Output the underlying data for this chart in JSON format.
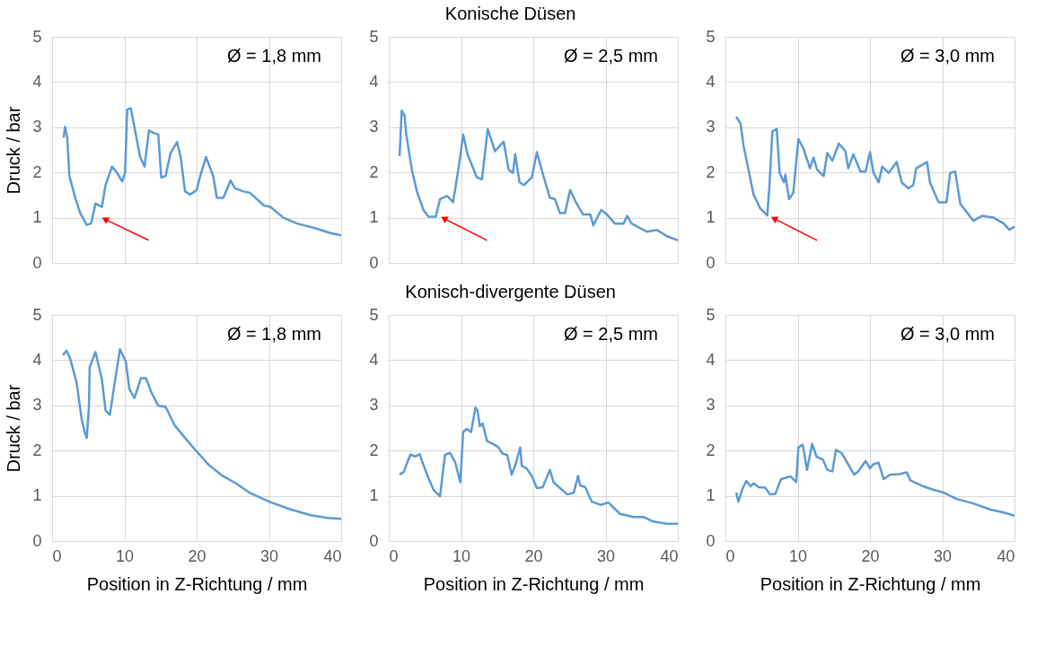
{
  "chart_data": [
    {
      "type": "line",
      "ylabel": "Druck / bar",
      "xlim": [
        0,
        40
      ],
      "xticks": [
        0,
        10,
        20,
        30,
        40
      ],
      "ylim": [
        0,
        5
      ],
      "yticks": [
        0,
        1,
        2,
        3,
        4,
        5
      ],
      "grid": true,
      "tick_labels": "y",
      "annotations": [
        "Ø = 1,8 mm"
      ],
      "series": [
        {
          "color": "#5b9bd5",
          "x": [
            1.6,
            1.8,
            2.1,
            2.4,
            3.2,
            3.9,
            4.8,
            5.4,
            6.0,
            6.9,
            7.4,
            8.3,
            9.0,
            9.7,
            10.1,
            10.4,
            10.9,
            11.3,
            12.2,
            12.8,
            13.4,
            14.1,
            14.7,
            15.1,
            15.7,
            16.4,
            17.3,
            17.8,
            18.4,
            19.1,
            20.0,
            20.5,
            21.3,
            22.3,
            22.8,
            23.7,
            24.7,
            25.3,
            26.5,
            27.4,
            29.3,
            30.2,
            32.0,
            33.9,
            36.6,
            38.5,
            40
          ],
          "values": [
            2.77,
            3.01,
            2.77,
            1.92,
            1.44,
            1.1,
            0.84,
            0.87,
            1.31,
            1.24,
            1.72,
            2.13,
            1.99,
            1.8,
            1.99,
            3.39,
            3.42,
            3.08,
            2.33,
            2.13,
            2.93,
            2.87,
            2.84,
            1.89,
            1.92,
            2.43,
            2.67,
            2.33,
            1.58,
            1.51,
            1.61,
            1.92,
            2.34,
            1.92,
            1.44,
            1.44,
            1.82,
            1.65,
            1.58,
            1.55,
            1.27,
            1.24,
            1.0,
            0.87,
            0.76,
            0.66,
            0.61
          ]
        }
      ]
    },
    {
      "type": "line",
      "title": "Konische Düsen",
      "xlim": [
        0,
        40
      ],
      "xticks": [
        0,
        10,
        20,
        30,
        40
      ],
      "ylim": [
        0,
        5
      ],
      "yticks": [
        0,
        1,
        2,
        3,
        4,
        5
      ],
      "grid": true,
      "tick_labels": "y",
      "annotations": [
        "Ø = 2,5 mm"
      ],
      "series": [
        {
          "color": "#5b9bd5",
          "x": [
            1.5,
            1.8,
            2.2,
            2.4,
            3.2,
            3.9,
            4.8,
            5.5,
            6.5,
            7.1,
            8.1,
            8.9,
            9.7,
            10.3,
            10.9,
            12.2,
            12.9,
            13.7,
            14.7,
            15.9,
            16.6,
            17.2,
            17.5,
            18.1,
            18.7,
            19.8,
            20.5,
            21.4,
            22.3,
            23.0,
            23.7,
            24.4,
            25.1,
            26.0,
            26.9,
            27.9,
            28.3,
            29.4,
            30.2,
            31.3,
            32.5,
            33.0,
            33.6,
            35.7,
            37.1,
            38.5,
            40
          ],
          "values": [
            2.36,
            3.37,
            3.25,
            2.87,
            2.06,
            1.58,
            1.17,
            1.02,
            1.02,
            1.41,
            1.48,
            1.34,
            2.13,
            2.84,
            2.4,
            1.89,
            1.85,
            2.96,
            2.47,
            2.68,
            2.06,
            1.99,
            2.4,
            1.78,
            1.72,
            1.89,
            2.45,
            1.92,
            1.44,
            1.41,
            1.1,
            1.1,
            1.61,
            1.31,
            1.07,
            1.07,
            0.83,
            1.17,
            1.07,
            0.87,
            0.87,
            1.04,
            0.87,
            0.69,
            0.73,
            0.59,
            0.5
          ]
        }
      ]
    },
    {
      "type": "line",
      "xlim": [
        0,
        40
      ],
      "xticks": [
        0,
        10,
        20,
        30,
        40
      ],
      "ylim": [
        0,
        5
      ],
      "yticks": [
        0,
        1,
        2,
        3,
        4,
        5
      ],
      "grid": true,
      "tick_labels": "y",
      "annotations": [
        "Ø = 3,0 mm"
      ],
      "series": [
        {
          "color": "#5b9bd5",
          "x": [
            1.5,
            2.1,
            2.5,
            3.2,
            3.9,
            4.8,
            5.8,
            6.1,
            6.5,
            7.1,
            7.5,
            8.1,
            8.3,
            8.8,
            9.4,
            10.1,
            10.8,
            11.7,
            12.2,
            12.7,
            13.6,
            14.1,
            14.8,
            15.7,
            16.6,
            17.0,
            17.7,
            18.7,
            19.4,
            20.0,
            20.5,
            21.2,
            21.7,
            22.6,
            23.7,
            24.4,
            25.3,
            26.0,
            26.4,
            27.9,
            28.3,
            29.5,
            30.6,
            31.1,
            31.8,
            32.5,
            34.3,
            35.5,
            37.1,
            38.5,
            39.3,
            40
          ],
          "values": [
            3.23,
            3.08,
            2.6,
            2.06,
            1.51,
            1.21,
            1.05,
            1.72,
            2.91,
            2.96,
            1.99,
            1.78,
            1.95,
            1.41,
            1.55,
            2.74,
            2.53,
            2.09,
            2.33,
            2.06,
            1.92,
            2.43,
            2.26,
            2.64,
            2.47,
            2.09,
            2.4,
            2.02,
            2.02,
            2.45,
            1.99,
            1.78,
            2.13,
            1.99,
            2.23,
            1.78,
            1.65,
            1.72,
            2.09,
            2.23,
            1.78,
            1.34,
            1.34,
            1.99,
            2.02,
            1.31,
            0.93,
            1.04,
            1.0,
            0.87,
            0.73,
            0.8
          ]
        }
      ]
    },
    {
      "type": "line",
      "xlabel": "Position in Z-Richtung / mm",
      "ylabel": "Druck / bar",
      "xlim": [
        0,
        40
      ],
      "xticks": [
        0,
        10,
        20,
        30,
        40
      ],
      "ylim": [
        0,
        5
      ],
      "yticks": [
        0,
        1,
        2,
        3,
        4,
        5
      ],
      "grid": true,
      "annotations": [
        "Ø = 1,8 mm"
      ],
      "series": [
        {
          "color": "#5b9bd5",
          "x": [
            1.5,
            2.0,
            2.5,
            3.4,
            4.1,
            4.5,
            4.8,
            5.1,
            5.2,
            6.0,
            6.9,
            7.4,
            8.0,
            8.6,
            9.4,
            10.2,
            10.7,
            11.4,
            12.3,
            13.0,
            13.7,
            14.7,
            15.7,
            17.0,
            18.4,
            19.9,
            21.7,
            23.6,
            25.5,
            27.3,
            30.2,
            33.0,
            35.8,
            38.1,
            40
          ],
          "values": [
            4.11,
            4.21,
            4.04,
            3.5,
            2.69,
            2.42,
            2.28,
            2.96,
            3.84,
            4.18,
            3.57,
            2.89,
            2.79,
            3.43,
            4.24,
            3.97,
            3.36,
            3.16,
            3.6,
            3.6,
            3.3,
            2.99,
            2.97,
            2.55,
            2.28,
            2.0,
            1.68,
            1.44,
            1.27,
            1.07,
            0.86,
            0.7,
            0.57,
            0.51,
            0.49
          ]
        }
      ]
    },
    {
      "type": "line",
      "title": "Konisch-divergente Düsen",
      "xlabel": "Position in Z-Richtung / mm",
      "xlim": [
        0,
        40
      ],
      "xticks": [
        0,
        10,
        20,
        30,
        40
      ],
      "ylim": [
        0,
        5
      ],
      "yticks": [
        0,
        1,
        2,
        3,
        4,
        5
      ],
      "grid": true,
      "annotations": [
        "Ø = 2,5 mm"
      ],
      "series": [
        {
          "color": "#5b9bd5",
          "x": [
            1.5,
            2.1,
            2.4,
            3.0,
            3.7,
            4.3,
            4.6,
            5.3,
            6.2,
            7.1,
            7.6,
            7.8,
            8.5,
            9.2,
            9.9,
            10.3,
            10.8,
            11.4,
            12.0,
            12.3,
            12.6,
            13.0,
            13.6,
            14.5,
            15.2,
            15.7,
            16.4,
            17.0,
            17.5,
            18.2,
            18.4,
            19.1,
            19.8,
            20.5,
            21.3,
            22.3,
            22.8,
            23.7,
            24.7,
            25.6,
            26.2,
            26.5,
            27.2,
            28.1,
            29.3,
            30.4,
            32.0,
            33.9,
            35.3,
            36.6,
            38.5,
            40
          ],
          "values": [
            1.47,
            1.53,
            1.67,
            1.91,
            1.87,
            1.92,
            1.77,
            1.47,
            1.13,
            0.99,
            1.67,
            1.91,
            1.95,
            1.74,
            1.3,
            2.41,
            2.48,
            2.41,
            2.95,
            2.88,
            2.54,
            2.6,
            2.21,
            2.14,
            2.07,
            1.94,
            1.9,
            1.47,
            1.67,
            2.07,
            1.67,
            1.6,
            1.44,
            1.17,
            1.19,
            1.57,
            1.3,
            1.17,
            1.03,
            1.07,
            1.44,
            1.23,
            1.19,
            0.87,
            0.8,
            0.85,
            0.6,
            0.53,
            0.53,
            0.43,
            0.38,
            0.38
          ]
        }
      ]
    },
    {
      "type": "line",
      "xlabel": "Position in Z-Richtung / mm",
      "xlim": [
        0,
        40
      ],
      "xticks": [
        0,
        10,
        20,
        30,
        40
      ],
      "ylim": [
        0,
        5
      ],
      "yticks": [
        0,
        1,
        2,
        3,
        4,
        5
      ],
      "grid": true,
      "annotations": [
        "Ø = 3,0 mm"
      ],
      "series": [
        {
          "color": "#5b9bd5",
          "x": [
            1.5,
            1.8,
            2.3,
            2.9,
            3.5,
            3.9,
            4.6,
            5.5,
            6.2,
            6.9,
            7.7,
            9.0,
            9.8,
            10.1,
            10.7,
            11.3,
            12.0,
            12.6,
            13.5,
            14.1,
            14.8,
            15.3,
            16.1,
            17.2,
            17.8,
            18.4,
            19.4,
            20.0,
            20.5,
            21.2,
            21.9,
            22.8,
            24.0,
            25.1,
            25.6,
            27.4,
            28.8,
            30.2,
            32.0,
            34.3,
            36.6,
            38.5,
            40
          ],
          "values": [
            1.07,
            0.87,
            1.13,
            1.33,
            1.21,
            1.28,
            1.19,
            1.18,
            1.03,
            1.04,
            1.37,
            1.43,
            1.3,
            2.07,
            2.13,
            1.57,
            2.15,
            1.87,
            1.8,
            1.57,
            1.54,
            2.02,
            1.94,
            1.64,
            1.47,
            1.54,
            1.77,
            1.61,
            1.7,
            1.73,
            1.37,
            1.47,
            1.48,
            1.52,
            1.34,
            1.21,
            1.13,
            1.07,
            0.93,
            0.83,
            0.7,
            0.63,
            0.56
          ]
        }
      ]
    }
  ]
}
